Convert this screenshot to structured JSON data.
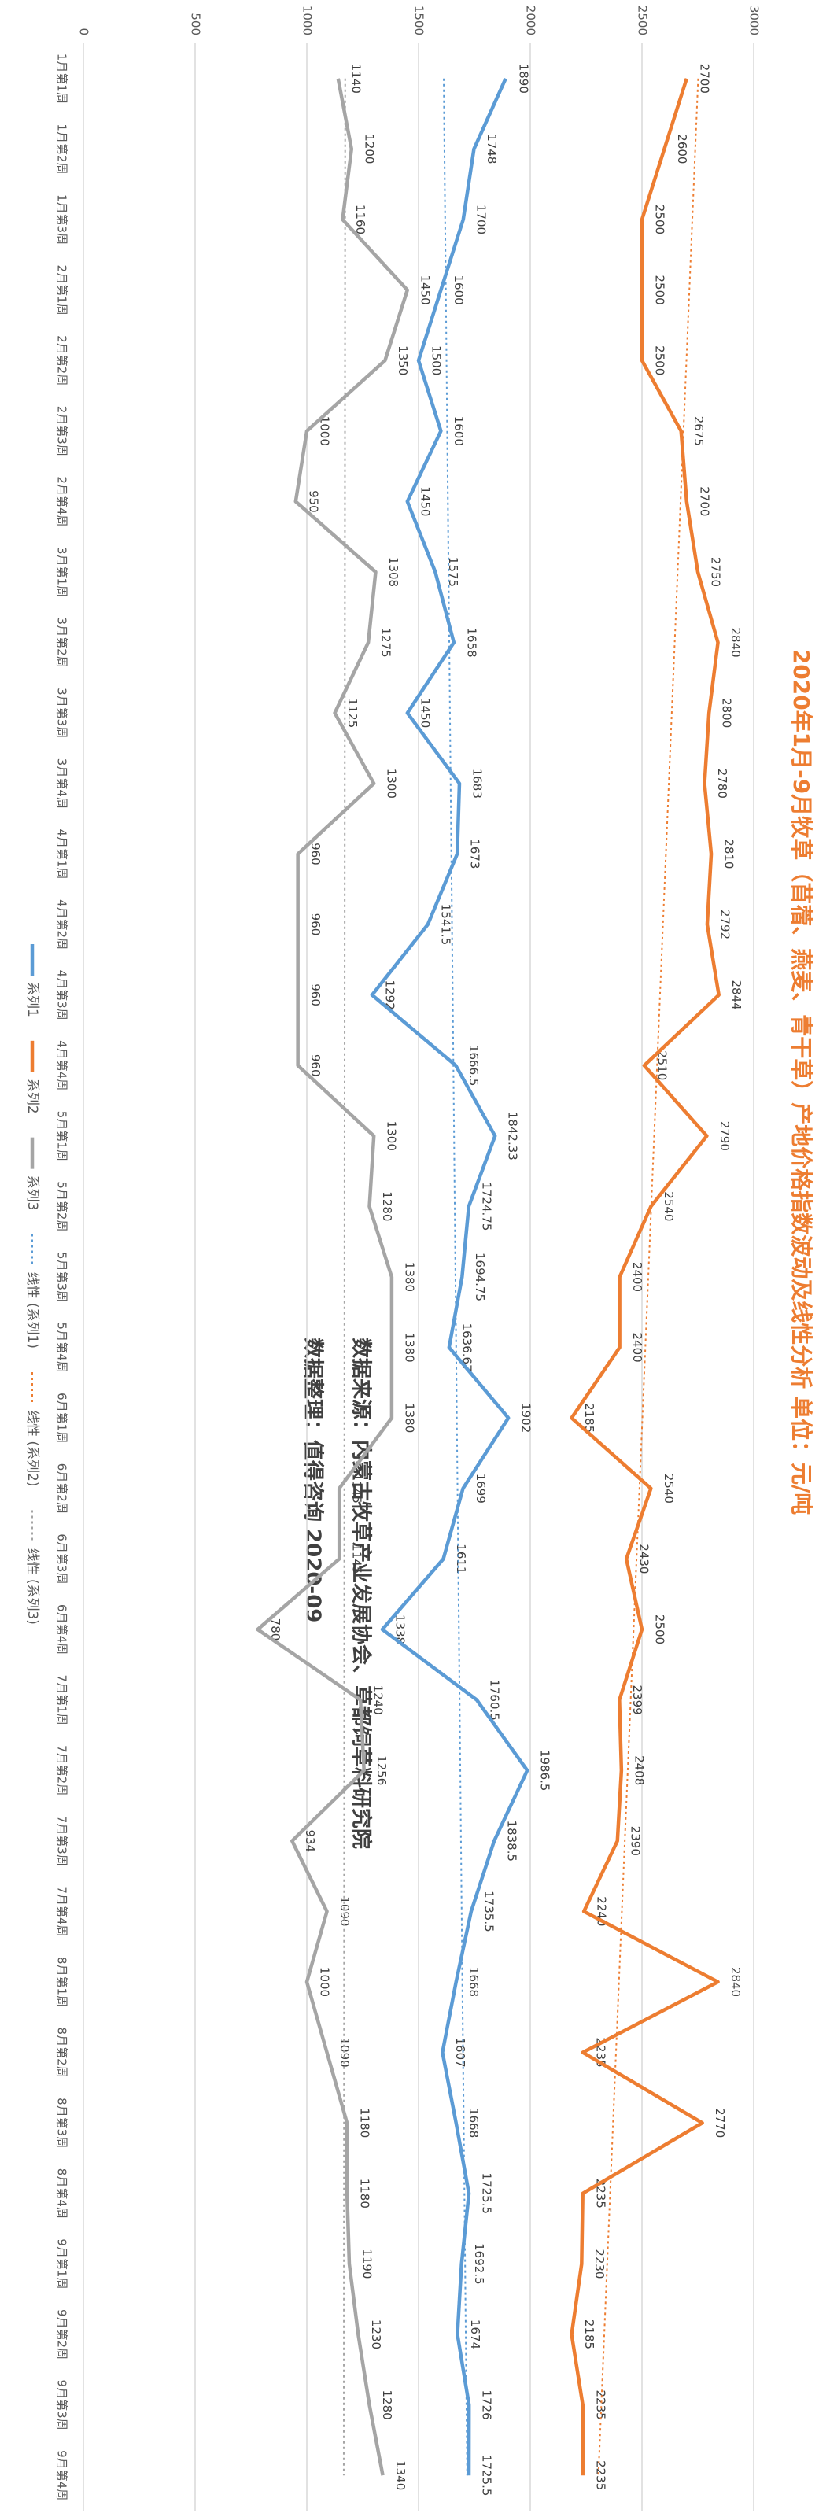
{
  "chart_data": {
    "type": "line",
    "title": "2020年1月-9月牧草（苜蓿、燕麦、青干草）产地价格指数波动及线性分析 单位：元/吨",
    "annotations": [
      "数据来源：内蒙古牧草产业发展协会、草都饲草料研究院",
      "数据整理：值得咨询      2020-09"
    ],
    "categories": [
      "1月第1周",
      "1月第2周",
      "1月第3周",
      "2月第1周",
      "2月第2周",
      "2月第3周",
      "2月第4周",
      "3月第1周",
      "3月第2周",
      "3月第3周",
      "3月第4周",
      "4月第1周",
      "4月第2周",
      "4月第3周",
      "4月第4周",
      "5月第1周",
      "5月第2周",
      "5月第3周",
      "5月第4周",
      "6月第1周",
      "6月第2周",
      "6月第3周",
      "6月第4周",
      "7月第1周",
      "7月第2周",
      "7月第3周",
      "7月第4周",
      "8月第1周",
      "8月第2周",
      "8月第3周",
      "8月第4周",
      "9月第1周",
      "9月第2周",
      "9月第3周",
      "9月第4周"
    ],
    "series": [
      {
        "name": "系列1",
        "color": "#5b9bd5",
        "trendline": "线性 (系列1)",
        "values": [
          1890,
          1748,
          1700,
          1600,
          1500,
          1600,
          1450,
          1575,
          1658,
          1450,
          1683,
          1673,
          1541.5,
          1292,
          1666.5,
          1842.33,
          1724.75,
          1694.75,
          1636.67,
          1902,
          1699,
          1611,
          1338,
          1760.5,
          1986.5,
          1838.5,
          1735.5,
          1668,
          1607,
          1668,
          1725.5,
          1692.5,
          1674,
          1726,
          1725.5
        ]
      },
      {
        "name": "系列2",
        "color": "#ed7d31",
        "trendline": "线性 (系列2)",
        "values": [
          2700,
          2600,
          2500,
          2500,
          2500,
          2675,
          2700,
          2750,
          2840,
          2800,
          2780,
          2810,
          2792,
          2844,
          2510,
          2790,
          2540,
          2400,
          2400,
          2185,
          2540,
          2430,
          2500,
          2399,
          2408,
          2390,
          2240,
          2840,
          2235,
          2770,
          2235,
          2230,
          2185,
          2235,
          2235
        ]
      },
      {
        "name": "系列3",
        "color": "#a5a5a5",
        "trendline": "线性 (系列3)",
        "values": [
          1140,
          1200,
          1160,
          1450,
          1350,
          1000,
          950,
          1308,
          1275,
          1125,
          1300,
          960,
          960,
          960,
          960,
          1300,
          1280,
          1380,
          1380,
          1380,
          1145,
          1145,
          780,
          1240,
          1256,
          934,
          1090,
          1000,
          1090,
          1180,
          1180,
          1190,
          1230,
          1280,
          1340
        ]
      }
    ],
    "ylim": [
      0,
      3000
    ],
    "yticks": [
      0,
      500,
      1000,
      1500,
      2000,
      2500,
      3000
    ],
    "grid": true,
    "legend": "bottom"
  }
}
